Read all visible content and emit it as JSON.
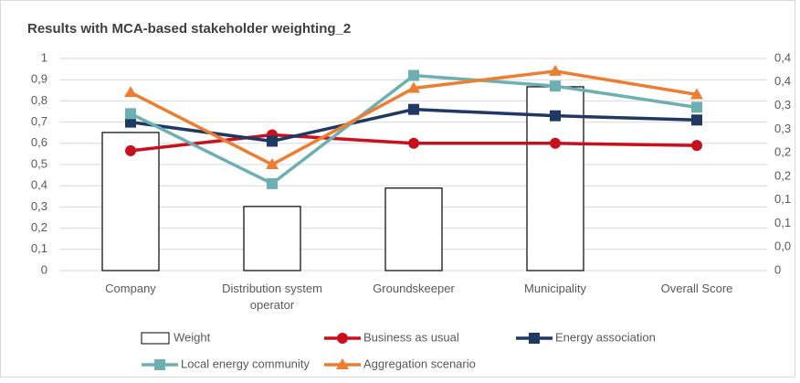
{
  "chart_data": {
    "type": "line",
    "title": "Results with MCA-based stakeholder weighting_2",
    "categories": [
      "Company",
      "Distribution system operator",
      "Groundskeeper",
      "Municipality",
      "Overall Score"
    ],
    "ylim": [
      0,
      1
    ],
    "yticks": [
      0,
      {
        "value": 0.1,
        "label": "0,1"
      },
      {
        "value": 0.2,
        "label": "0,2"
      },
      {
        "value": 0.3,
        "label": "0,3"
      },
      {
        "value": 0.4,
        "label": "0,4"
      },
      {
        "value": 0.5,
        "label": "0,5"
      },
      {
        "value": 0.6,
        "label": "0,6"
      },
      {
        "value": 0.7,
        "label": "0,7"
      },
      {
        "value": 0.8,
        "label": "0,8"
      },
      {
        "value": 0.9,
        "label": "0,9"
      },
      1
    ],
    "y2lim": [
      0,
      0.45
    ],
    "y2ticks": [
      0,
      {
        "value": 0.05,
        "label": "0,0"
      },
      {
        "value": 0.1,
        "label": "0,1"
      },
      {
        "value": 0.15,
        "label": "0,1"
      },
      {
        "value": 0.2,
        "label": "0,2"
      },
      {
        "value": 0.25,
        "label": "0,2"
      },
      {
        "value": 0.3,
        "label": "0,3"
      },
      {
        "value": 0.35,
        "label": "0,3"
      },
      {
        "value": 0.4,
        "label": "0,4"
      },
      {
        "value": 0.45,
        "label": "0,4"
      }
    ],
    "grid": true,
    "legend": "bottom",
    "series": [
      {
        "name": "Weight",
        "type": "bar",
        "axis": "y2",
        "color": "#ffffff",
        "values": [
          0.293,
          0.136,
          0.175,
          0.39,
          null
        ]
      },
      {
        "name": "Business as usual",
        "marker": "circle",
        "color": "#c8101e",
        "values": [
          0.565,
          0.64,
          0.6,
          0.6,
          0.59
        ]
      },
      {
        "name": "Energy association",
        "marker": "square",
        "color": "#203864",
        "values": [
          0.7,
          0.61,
          0.76,
          0.73,
          0.71
        ]
      },
      {
        "name": "Local energy community",
        "marker": "square",
        "color": "#6db0b3",
        "values": [
          0.74,
          0.41,
          0.92,
          0.87,
          0.77
        ]
      },
      {
        "name": "Aggregation scenario",
        "marker": "triangle",
        "color": "#ed7d31",
        "values": [
          0.84,
          0.5,
          0.86,
          0.94,
          0.83
        ]
      }
    ]
  }
}
